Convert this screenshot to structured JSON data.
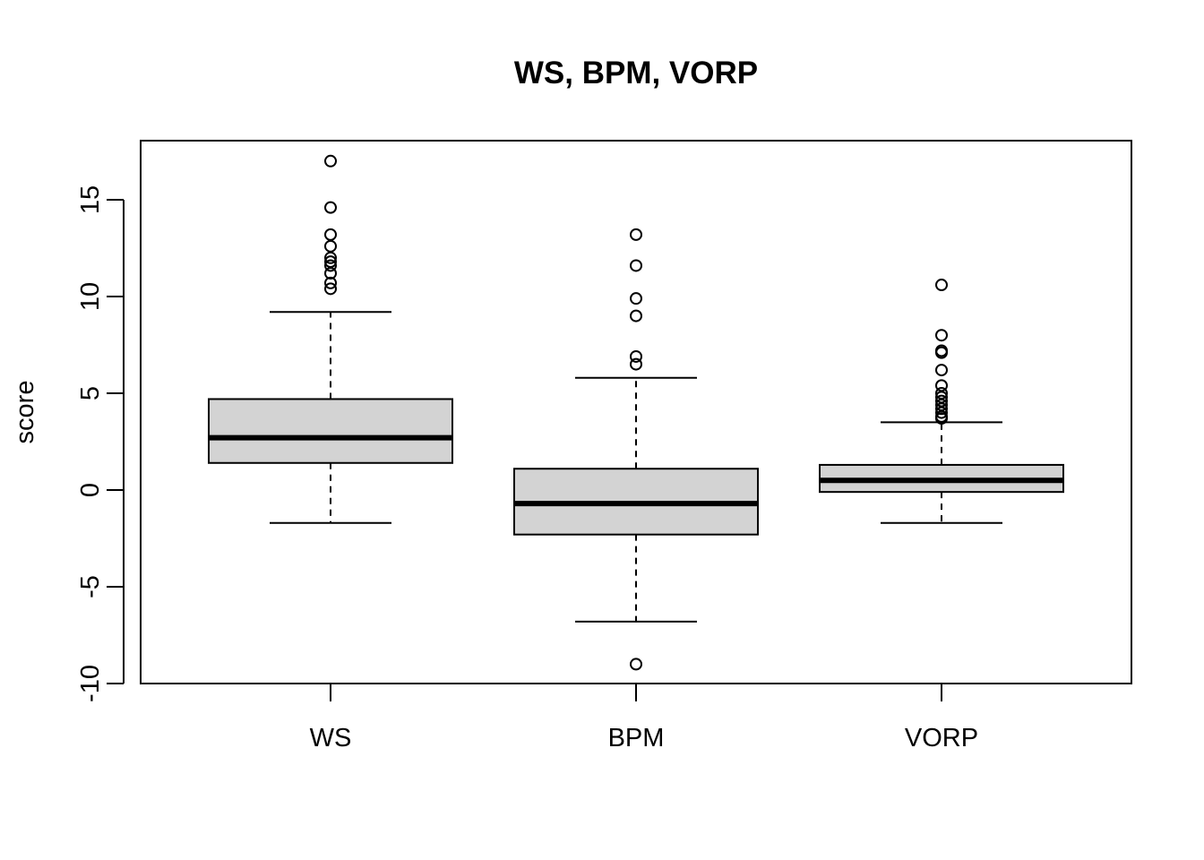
{
  "chart_data": {
    "type": "boxplot",
    "title": "WS, BPM, VORP",
    "xlabel": "",
    "ylabel": "score",
    "ylim": [
      -10,
      18
    ],
    "yticks": [
      -10,
      -5,
      0,
      5,
      10,
      15
    ],
    "ytick_labels": [
      "-10",
      "-5",
      "0",
      "5",
      "10",
      "15"
    ],
    "grid": false,
    "box_fill": "#d3d3d3",
    "categories": [
      "WS",
      "BPM",
      "VORP"
    ],
    "boxes": [
      {
        "name": "WS",
        "whisker_low": -1.7,
        "q1": 1.4,
        "median": 2.7,
        "q3": 4.7,
        "whisker_high": 9.2,
        "outliers": [
          17.0,
          14.6,
          13.2,
          12.6,
          12.0,
          11.8,
          11.6,
          11.2,
          10.7,
          10.4
        ]
      },
      {
        "name": "BPM",
        "whisker_low": -6.8,
        "q1": -2.3,
        "median": -0.7,
        "q3": 1.1,
        "whisker_high": 5.8,
        "outliers": [
          13.2,
          11.6,
          9.9,
          9.0,
          6.9,
          6.5,
          -9.0
        ]
      },
      {
        "name": "VORP",
        "whisker_low": -1.7,
        "q1": -0.1,
        "median": 0.5,
        "q3": 1.3,
        "whisker_high": 3.5,
        "outliers": [
          10.6,
          8.0,
          7.2,
          7.1,
          6.2,
          5.4,
          5.0,
          4.8,
          4.6,
          4.4,
          4.2,
          4.0,
          3.8,
          3.7
        ]
      }
    ]
  }
}
